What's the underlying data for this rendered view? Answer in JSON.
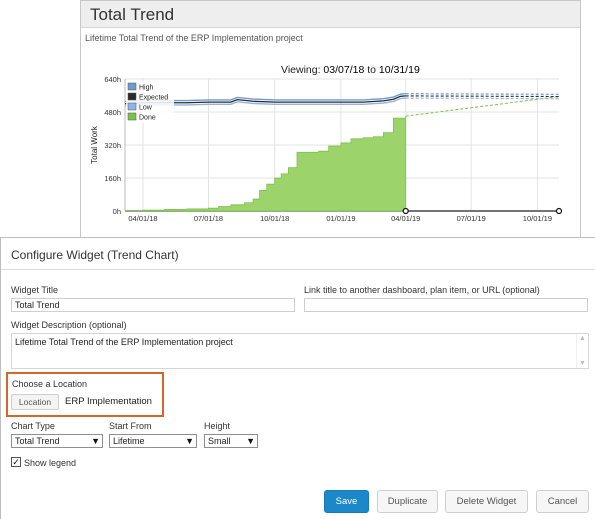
{
  "widget": {
    "title": "Total Trend",
    "description": "Lifetime Total Trend of the ERP Implementation project",
    "viewing_label": "Viewing:",
    "viewing_from": "03/07/18",
    "viewing_to_word": "to",
    "viewing_to": "10/31/19"
  },
  "chart_data": {
    "type": "area",
    "title": "",
    "xlabel": "",
    "ylabel": "Total Work",
    "y_ticks": [
      "0h",
      "160h",
      "320h",
      "480h",
      "640h"
    ],
    "ylim": [
      0,
      640
    ],
    "x_ticks": [
      "04/01/18",
      "07/01/18",
      "10/01/18",
      "01/01/19",
      "04/01/19",
      "07/01/19",
      "10/01/19"
    ],
    "xlim": [
      "03/07/18",
      "10/31/19"
    ],
    "grid": true,
    "legend_placement": "top-left",
    "legend": [
      {
        "name": "High",
        "color": "#6f9ad0"
      },
      {
        "name": "Expected",
        "color": "#2a2a2a"
      },
      {
        "name": "Low",
        "color": "#8fb3e6"
      },
      {
        "name": "Done",
        "color": "#7ac24a"
      }
    ],
    "series": [
      {
        "name": "Expected",
        "style": "solid-to-dashed",
        "x": [
          "03/07/18",
          "04/01/18",
          "05/01/18",
          "06/01/18",
          "07/01/18",
          "07/20/18",
          "08/01/18",
          "08/10/18",
          "09/01/18",
          "10/01/18",
          "10/15/18",
          "11/01/18",
          "12/01/18",
          "01/01/19",
          "02/01/19",
          "02/20/19",
          "03/01/19",
          "03/15/19",
          "03/25/19",
          "04/01/19",
          "10/31/19"
        ],
        "y": [
          520,
          525,
          525,
          525,
          528,
          528,
          528,
          540,
          532,
          528,
          528,
          528,
          528,
          528,
          528,
          532,
          534,
          542,
          556,
          558,
          555
        ]
      },
      {
        "name": "Done",
        "style": "solid-to-dashed",
        "x": [
          "03/07/18",
          "04/01/18",
          "05/01/18",
          "06/01/18",
          "07/01/18",
          "07/15/18",
          "08/01/18",
          "08/20/18",
          "09/01/18",
          "09/10/18",
          "09/20/18",
          "10/01/18",
          "10/10/18",
          "10/20/18",
          "11/01/18",
          "11/15/18",
          "12/01/18",
          "12/15/18",
          "01/01/19",
          "01/15/19",
          "02/01/19",
          "02/15/19",
          "03/01/19",
          "03/15/19",
          "04/01/19",
          "10/31/19"
        ],
        "y": [
          0,
          4,
          8,
          10,
          14,
          22,
          30,
          40,
          58,
          100,
          130,
          160,
          180,
          210,
          285,
          285,
          290,
          315,
          330,
          350,
          355,
          360,
          380,
          450,
          460,
          555
        ]
      }
    ]
  },
  "modal": {
    "title": "Configure Widget (Trend Chart)",
    "widget_title_label": "Widget Title",
    "widget_title_value": "Total Trend",
    "link_title_label": "Link title to another dashboard, plan item, or URL (optional)",
    "link_title_value": "",
    "desc_label": "Widget Description (optional)",
    "desc_value": "Lifetime Total Trend of the ERP Implementation project",
    "location_label": "Choose a Location",
    "location_button": "Location",
    "location_value": "ERP Implementation",
    "chart_type_label": "Chart Type",
    "chart_type_value": "Total Trend",
    "start_from_label": "Start From",
    "start_from_value": "Lifetime",
    "height_label": "Height",
    "height_value": "Small",
    "show_legend_label": "Show legend",
    "show_legend_checked": true,
    "buttons": {
      "save": "Save",
      "duplicate": "Duplicate",
      "delete": "Delete Widget",
      "cancel": "Cancel"
    },
    "accent_color": "#d5672a",
    "primary_color": "#1a88c9"
  }
}
